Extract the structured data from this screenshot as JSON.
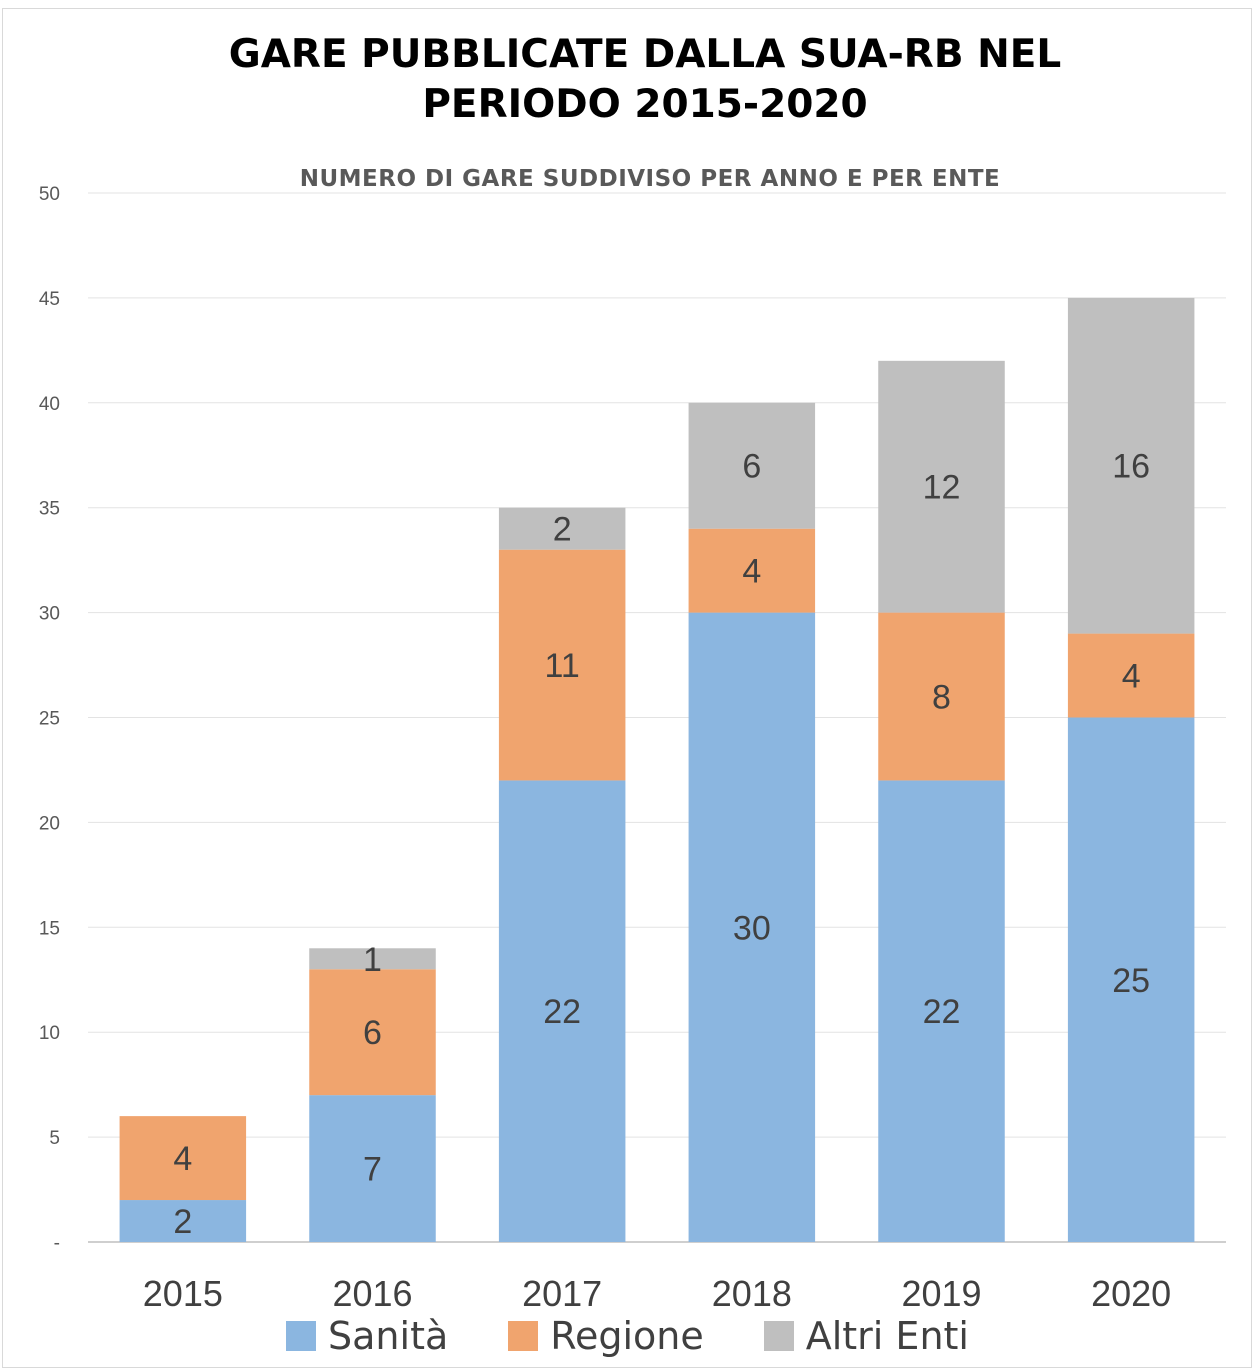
{
  "chart_data": {
    "type": "bar",
    "stacked": true,
    "title": "GARE PUBBLICATE DALLA SUA-RB NEL\nPERIODO 2015-2020",
    "subtitle": "NUMERO DI GARE SUDDIVISO PER ANNO E PER ENTE",
    "categories": [
      "2015",
      "2016",
      "2017",
      "2018",
      "2019",
      "2020"
    ],
    "series": [
      {
        "name": "Sanità",
        "values": [
          2,
          7,
          22,
          30,
          22,
          25
        ],
        "color": "#8bb6e0"
      },
      {
        "name": "Regione",
        "values": [
          4,
          6,
          11,
          4,
          8,
          4
        ],
        "color": "#f0a46e"
      },
      {
        "name": "Altri Enti",
        "values": [
          null,
          1,
          2,
          6,
          12,
          16
        ],
        "color": "#bfbfbf"
      }
    ],
    "data_labels": [
      [
        "2",
        "7",
        "22",
        "30",
        "22",
        "25"
      ],
      [
        "4",
        "6",
        "11",
        "4",
        "8",
        "4"
      ],
      [
        "",
        "1",
        "2",
        "6",
        "12",
        "16"
      ]
    ],
    "yticks": [
      "-",
      "5",
      "10",
      "15",
      "20",
      "25",
      "30",
      "35",
      "40",
      "45",
      "50"
    ],
    "ylim": [
      0,
      50
    ],
    "grid": true,
    "legend_position": "bottom"
  }
}
